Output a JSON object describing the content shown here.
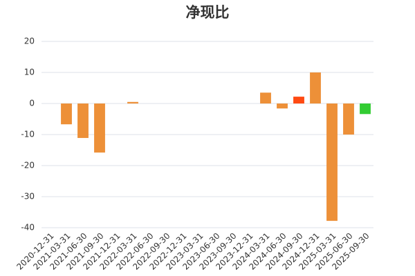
{
  "chart_data": {
    "type": "bar",
    "title": "净现比",
    "categories": [
      "2020-12-31",
      "2021-03-31",
      "2021-06-30",
      "2021-09-30",
      "2021-12-31",
      "2022-03-31",
      "2022-06-30",
      "2022-09-30",
      "2022-12-31",
      "2023-03-31",
      "2023-06-30",
      "2023-09-30",
      "2023-12-31",
      "2024-03-31",
      "2024-06-30",
      "2024-09-30",
      "2024-12-31",
      "2025-03-31",
      "2025-06-30",
      "2025-09-30"
    ],
    "values": [
      null,
      -6.7,
      -11.1,
      -15.8,
      null,
      0.5,
      null,
      null,
      null,
      null,
      null,
      null,
      null,
      3.5,
      -1.6,
      2.2,
      10,
      -37.8,
      -10,
      -3.4
    ],
    "colors": [
      "#ed9038",
      "#ed9038",
      "#ed9038",
      "#ed9038",
      "#ed9038",
      "#ed9038",
      "#ed9038",
      "#ed9038",
      "#ed9038",
      "#ed9038",
      "#ed9038",
      "#ed9038",
      "#ed9038",
      "#ed9038",
      "#ed9038",
      "#ff4a12",
      "#ed9038",
      "#ed9038",
      "#ed9038",
      "#33cc33"
    ],
    "ylim": [
      -40,
      20
    ],
    "yticks": [
      -40,
      -30,
      -20,
      -10,
      0,
      10,
      20
    ],
    "grid": true
  }
}
